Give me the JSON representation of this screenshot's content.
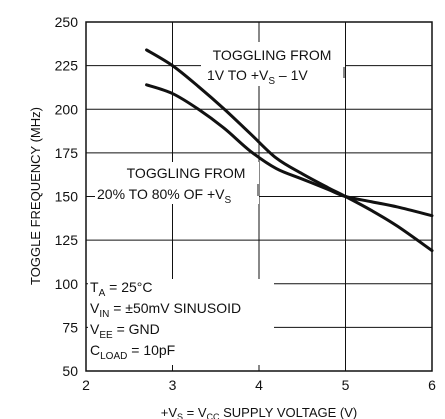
{
  "chart_data": {
    "type": "line",
    "xlabel": "+V_S = V_CC SUPPLY VOLTAGE (V)",
    "ylabel": "TOGGLE FREQUENCY (MHz)",
    "xlim": [
      2,
      6
    ],
    "ylim": [
      50,
      250
    ],
    "xticks": [
      "2",
      "3",
      "4",
      "5",
      "6"
    ],
    "yticks": [
      "50",
      "75",
      "100",
      "125",
      "150",
      "175",
      "200",
      "225",
      "250"
    ],
    "grid": true,
    "series": [
      {
        "name": "TOGGLING FROM 1V TO +V_S – 1V",
        "x": [
          2.7,
          3.0,
          3.3,
          3.6,
          3.9,
          4.2,
          4.5,
          4.8,
          5.0,
          5.3,
          5.6,
          6.0
        ],
        "y": [
          234,
          225,
          213,
          200,
          186,
          172,
          163,
          155,
          150,
          142,
          133,
          119
        ]
      },
      {
        "name": "TOGGLING FROM 20% TO 80% OF +V_S",
        "x": [
          2.7,
          3.0,
          3.3,
          3.6,
          3.9,
          4.2,
          4.5,
          4.8,
          5.0,
          5.3,
          5.6,
          6.0
        ],
        "y": [
          214,
          209,
          200,
          189,
          176,
          166,
          160,
          154,
          150,
          147,
          144,
          139
        ]
      }
    ],
    "annotations": {
      "upper_line1": "TOGGLING FROM",
      "upper_line2": "1V TO +V",
      "upper_line2_sub": "S",
      "upper_line2_tail": " – 1V",
      "lower_line1": "TOGGLING FROM",
      "lower_line2": "20% TO 80% OF +V",
      "lower_line2_sub": "S"
    },
    "conditions": {
      "ta_main": "T",
      "ta_sub": "A",
      "ta_tail": " = 25°C",
      "vin_main": "V",
      "vin_sub": "IN",
      "vin_tail": " = ±50mV SINUSOID",
      "vee_main": "V",
      "vee_sub": "EE",
      "vee_tail": " = GND",
      "cload_main": "C",
      "cload_sub": "LOAD",
      "cload_tail": " = 10pF"
    },
    "xlabel_parts": {
      "a": "+V",
      "a_sub": "S",
      "b": " = V",
      "b_sub": "CC",
      "c": " SUPPLY VOLTAGE (V)"
    }
  }
}
